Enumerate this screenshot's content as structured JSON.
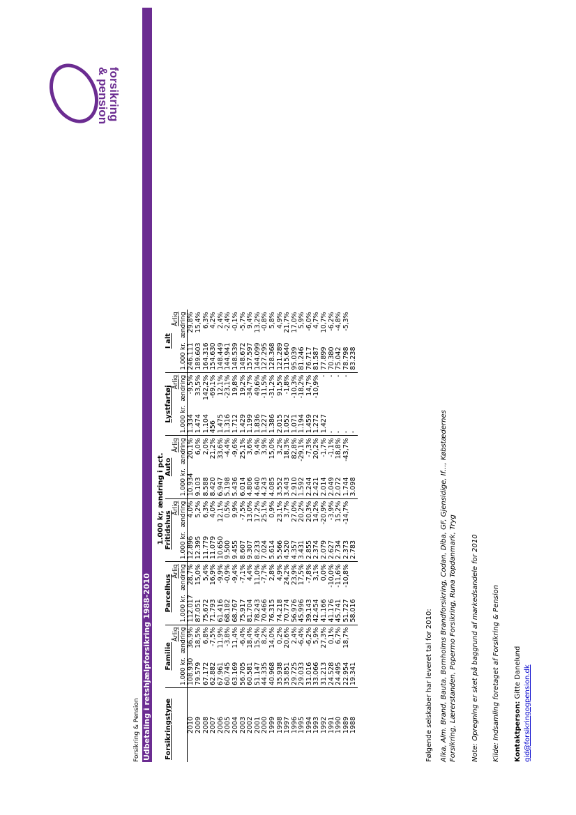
{
  "org": "Forsikring & Pension",
  "title": "Udbetaling i retshjælpforsikring 1988-2010",
  "table": {
    "super_header": "1.000 kr, ændring i pct.",
    "type_header": "Forsikringstype",
    "groups": [
      "Familie",
      "Parcelhus",
      "Fritidshus",
      "Auto",
      "Lystfartøj",
      "I alt"
    ],
    "sub_value": "1.000 kr.",
    "sub_change_1": "Årlig",
    "sub_change_2": "ændring",
    "rows": [
      {
        "year": "2010",
        "c": [
          "108.930",
          "36,9%",
          "112.017",
          "28,7%",
          "12.896",
          "4,0%",
          "10.934",
          "20,1%",
          "1.334",
          "-9,5%",
          "246.111",
          "29,8%"
        ]
      },
      {
        "year": "2009",
        "c": [
          "79.579",
          "18,5%",
          "87.051",
          "15,0%",
          "12.395",
          "5,2%",
          "9.103",
          "6,0%",
          "1.474",
          "33,5%",
          "189.603",
          "15,4%"
        ]
      },
      {
        "year": "2008",
        "c": [
          "67.172",
          "6,8%",
          "75.672",
          "5,4%",
          "11.779",
          "6,3%",
          "8.588",
          "2,0%",
          "1.104",
          "142,2%",
          "164.316",
          "6,3%"
        ]
      },
      {
        "year": "2007",
        "c": [
          "62.882",
          "-7,5%",
          "71.793",
          "16,9%",
          "11.079",
          "4,0%",
          "8.420",
          "21,2%",
          "456",
          "-69,1%",
          "154.630",
          "4,2%"
        ]
      },
      {
        "year": "2006",
        "c": [
          "67.961",
          "11,9%",
          "61.416",
          "-9,9%",
          "10.650",
          "12,1%",
          "6.947",
          "33,6%",
          "1.475",
          "12,1%",
          "148.449",
          "2,4%"
        ]
      },
      {
        "year": "2005",
        "c": [
          "60.745",
          "-3,8%",
          "68.182",
          "-0,9%",
          "9.500",
          "0,5%",
          "5.198",
          "-4,4%",
          "1.316",
          "-23,1%",
          "144.941",
          "-2,4%"
        ]
      },
      {
        "year": "2004",
        "c": [
          "63.169",
          "11,4%",
          "68.767",
          "-9,4%",
          "9.455",
          "9,9%",
          "5.436",
          "-9,6%",
          "1.712",
          "19,8%",
          "148.539",
          "-0,1%"
        ]
      },
      {
        "year": "2003",
        "c": [
          "56.705",
          "-6,4%",
          "75.917",
          "-7,1%",
          "8.607",
          "-7,5%",
          "6.014",
          "25,1%",
          "1.429",
          "19,2%",
          "148.672",
          "-5,7%"
        ]
      },
      {
        "year": "2002",
        "c": [
          "60.581",
          "18,4%",
          "81.704",
          "4,4%",
          "9.307",
          "13,0%",
          "4.806",
          "3,6%",
          "1.199",
          "-34,7%",
          "157.597",
          "9,4%"
        ]
      },
      {
        "year": "2001",
        "c": [
          "51.147",
          "15,4%",
          "78.243",
          "11,0%",
          "8.233",
          "17,2%",
          "4.640",
          "9,4%",
          "1.836",
          "49,6%",
          "144.099",
          "13,2%"
        ]
      },
      {
        "year": "2000",
        "c": [
          "44.335",
          "8,2%",
          "70.466",
          "-7,7%",
          "7.024",
          "25,1%",
          "4.243",
          "3,9%",
          "1.227",
          "-11,5%",
          "127.295",
          "-0,8%"
        ]
      },
      {
        "year": "1999",
        "c": [
          "40.968",
          "14,0%",
          "76.315",
          "2,8%",
          "5.614",
          "0,9%",
          "4.085",
          "15,0%",
          "1.386",
          "-31,2%",
          "128.368",
          "5,8%"
        ]
      },
      {
        "year": "1998",
        "c": [
          "35.938",
          "0,2%",
          "74.218",
          "4,9%",
          "5.566",
          "23,1%",
          "3.552",
          "3,2%",
          "2.015",
          "91,5%",
          "121.289",
          "4,9%"
        ]
      },
      {
        "year": "1997",
        "c": [
          "35.851",
          "20,6%",
          "70.774",
          "24,2%",
          "4.520",
          "3,7%",
          "3.443",
          "18,3%",
          "1.052",
          "-1,8%",
          "115.640",
          "21,7%"
        ]
      },
      {
        "year": "1996",
        "c": [
          "29.725",
          "2,4%",
          "56.976",
          "23,9%",
          "4.357",
          "27,0%",
          "2.910",
          "82,8%",
          "1.071",
          "-10,3%",
          "95.039",
          "17,0%"
        ]
      },
      {
        "year": "1995",
        "c": [
          "29.033",
          "-6,4%",
          "45.996",
          "17,5%",
          "3.431",
          "20,2%",
          "1.592",
          "-29,1%",
          "1.194",
          "-18,2%",
          "81.246",
          "5,9%"
        ]
      },
      {
        "year": "1994",
        "c": [
          "31.016",
          "-6,2%",
          "39.143",
          "-7,8%",
          "2.855",
          "20,3%",
          "2.244",
          "-7,3%",
          "1.459",
          "14,7%",
          "76.717",
          "-6,0%"
        ]
      },
      {
        "year": "1993",
        "c": [
          "33.066",
          "5,9%",
          "42.454",
          "3,1%",
          "2.374",
          "14,2%",
          "2.421",
          "20,2%",
          "1.272",
          "-10,9%",
          "81.587",
          "4,7%"
        ]
      },
      {
        "year": "1992",
        "c": [
          "31.213",
          "27,3%",
          "41.166",
          "0,0%",
          "2.079",
          "-20,9%",
          "2.014",
          "-1,7%",
          "1.427",
          "-",
          "77.899",
          "10,7%"
        ]
      },
      {
        "year": "1991",
        "c": [
          "24.528",
          "0,1%",
          "41.176",
          "-10,0%",
          "2.627",
          "-3,9%",
          "2.049",
          "-1,1%",
          "-",
          "-",
          "70.380",
          "-6,2%"
        ]
      },
      {
        "year": "1990",
        "c": [
          "24.495",
          "6,7%",
          "45.741",
          "-11,6%",
          "2.734",
          "15,2%",
          "2.072",
          "18,8%",
          "-",
          "-",
          "75.042",
          "-4,8%"
        ]
      },
      {
        "year": "1989",
        "c": [
          "22.954",
          "18,7%",
          "51.727",
          "-10,8%",
          "2.373",
          "-14,7%",
          "1.744",
          "-43,7%",
          "-",
          "-",
          "78.798",
          "-5,3%"
        ]
      },
      {
        "year": "1988",
        "c": [
          "19.341",
          "",
          "58.016",
          "",
          "2.783",
          "",
          "3.098",
          "",
          "-",
          "",
          "83.238",
          ""
        ]
      }
    ]
  },
  "following": "Følgende selskaber har leveret tal for 2010:",
  "companies": "Alka, Alm. Brand, Bauta, Bornholms Brandforsikring, Codan, Diba, GF, Gjensidige, If..., Købstædernes Forsikring, Lærerstanden, Popermo Forsikring, Runa Topdanmark, Tryg",
  "note": "Note: Opregning er sket på baggrund af markedsandele for 2010",
  "source": "Kilde: Indsamling foretaget af Forsikring & Pension",
  "contact_label": "Kontaktperson:",
  "contact_name": "Gitte Danelund",
  "email": "gid@forsikringogpension.dk",
  "logo": {
    "line1": "forsikring",
    "line2": "& pension",
    "color": "#6b2c91"
  }
}
